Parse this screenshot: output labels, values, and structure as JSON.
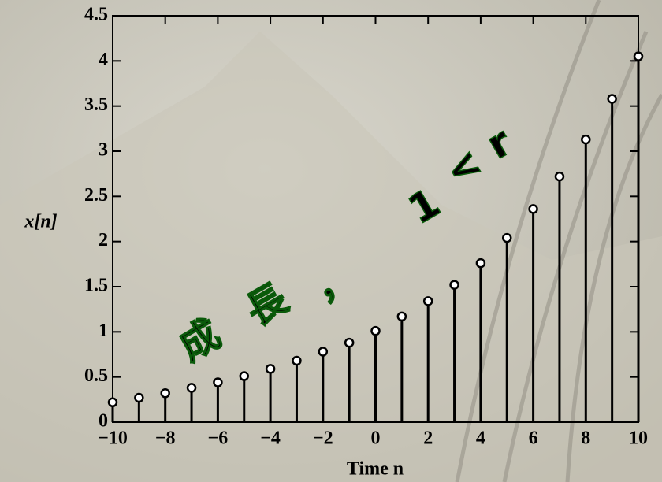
{
  "chart_data": {
    "type": "stem",
    "x_label": "Time n",
    "y_label": "x[n]",
    "x": [
      -10,
      -9,
      -8,
      -7,
      -6,
      -5,
      -4,
      -3,
      -2,
      -1,
      0,
      1,
      2,
      3,
      4,
      5,
      6,
      7,
      8,
      9,
      10
    ],
    "values": [
      0.22,
      0.27,
      0.32,
      0.38,
      0.44,
      0.51,
      0.59,
      0.68,
      0.78,
      0.88,
      1.01,
      1.17,
      1.34,
      1.52,
      1.76,
      2.04,
      2.36,
      2.72,
      3.13,
      3.58,
      4.05
    ],
    "color": "#000000",
    "xlim": [
      -10,
      10
    ],
    "xticks": [
      {
        "value": -10,
        "label": "−10"
      },
      {
        "value": -8,
        "label": "−8"
      },
      {
        "value": -6,
        "label": "−6"
      },
      {
        "value": -4,
        "label": "−4"
      },
      {
        "value": -2,
        "label": "−2"
      },
      0,
      2,
      4,
      6,
      8,
      10
    ],
    "ylim": [
      0,
      4.5
    ],
    "yticks": [
      0,
      0.5,
      1,
      1.5,
      2,
      2.5,
      3,
      3.5,
      4,
      4.5
    ],
    "annotation": [
      "成",
      "長",
      "，",
      "1",
      "<",
      "r"
    ],
    "annotation_color": "#22dd22"
  }
}
